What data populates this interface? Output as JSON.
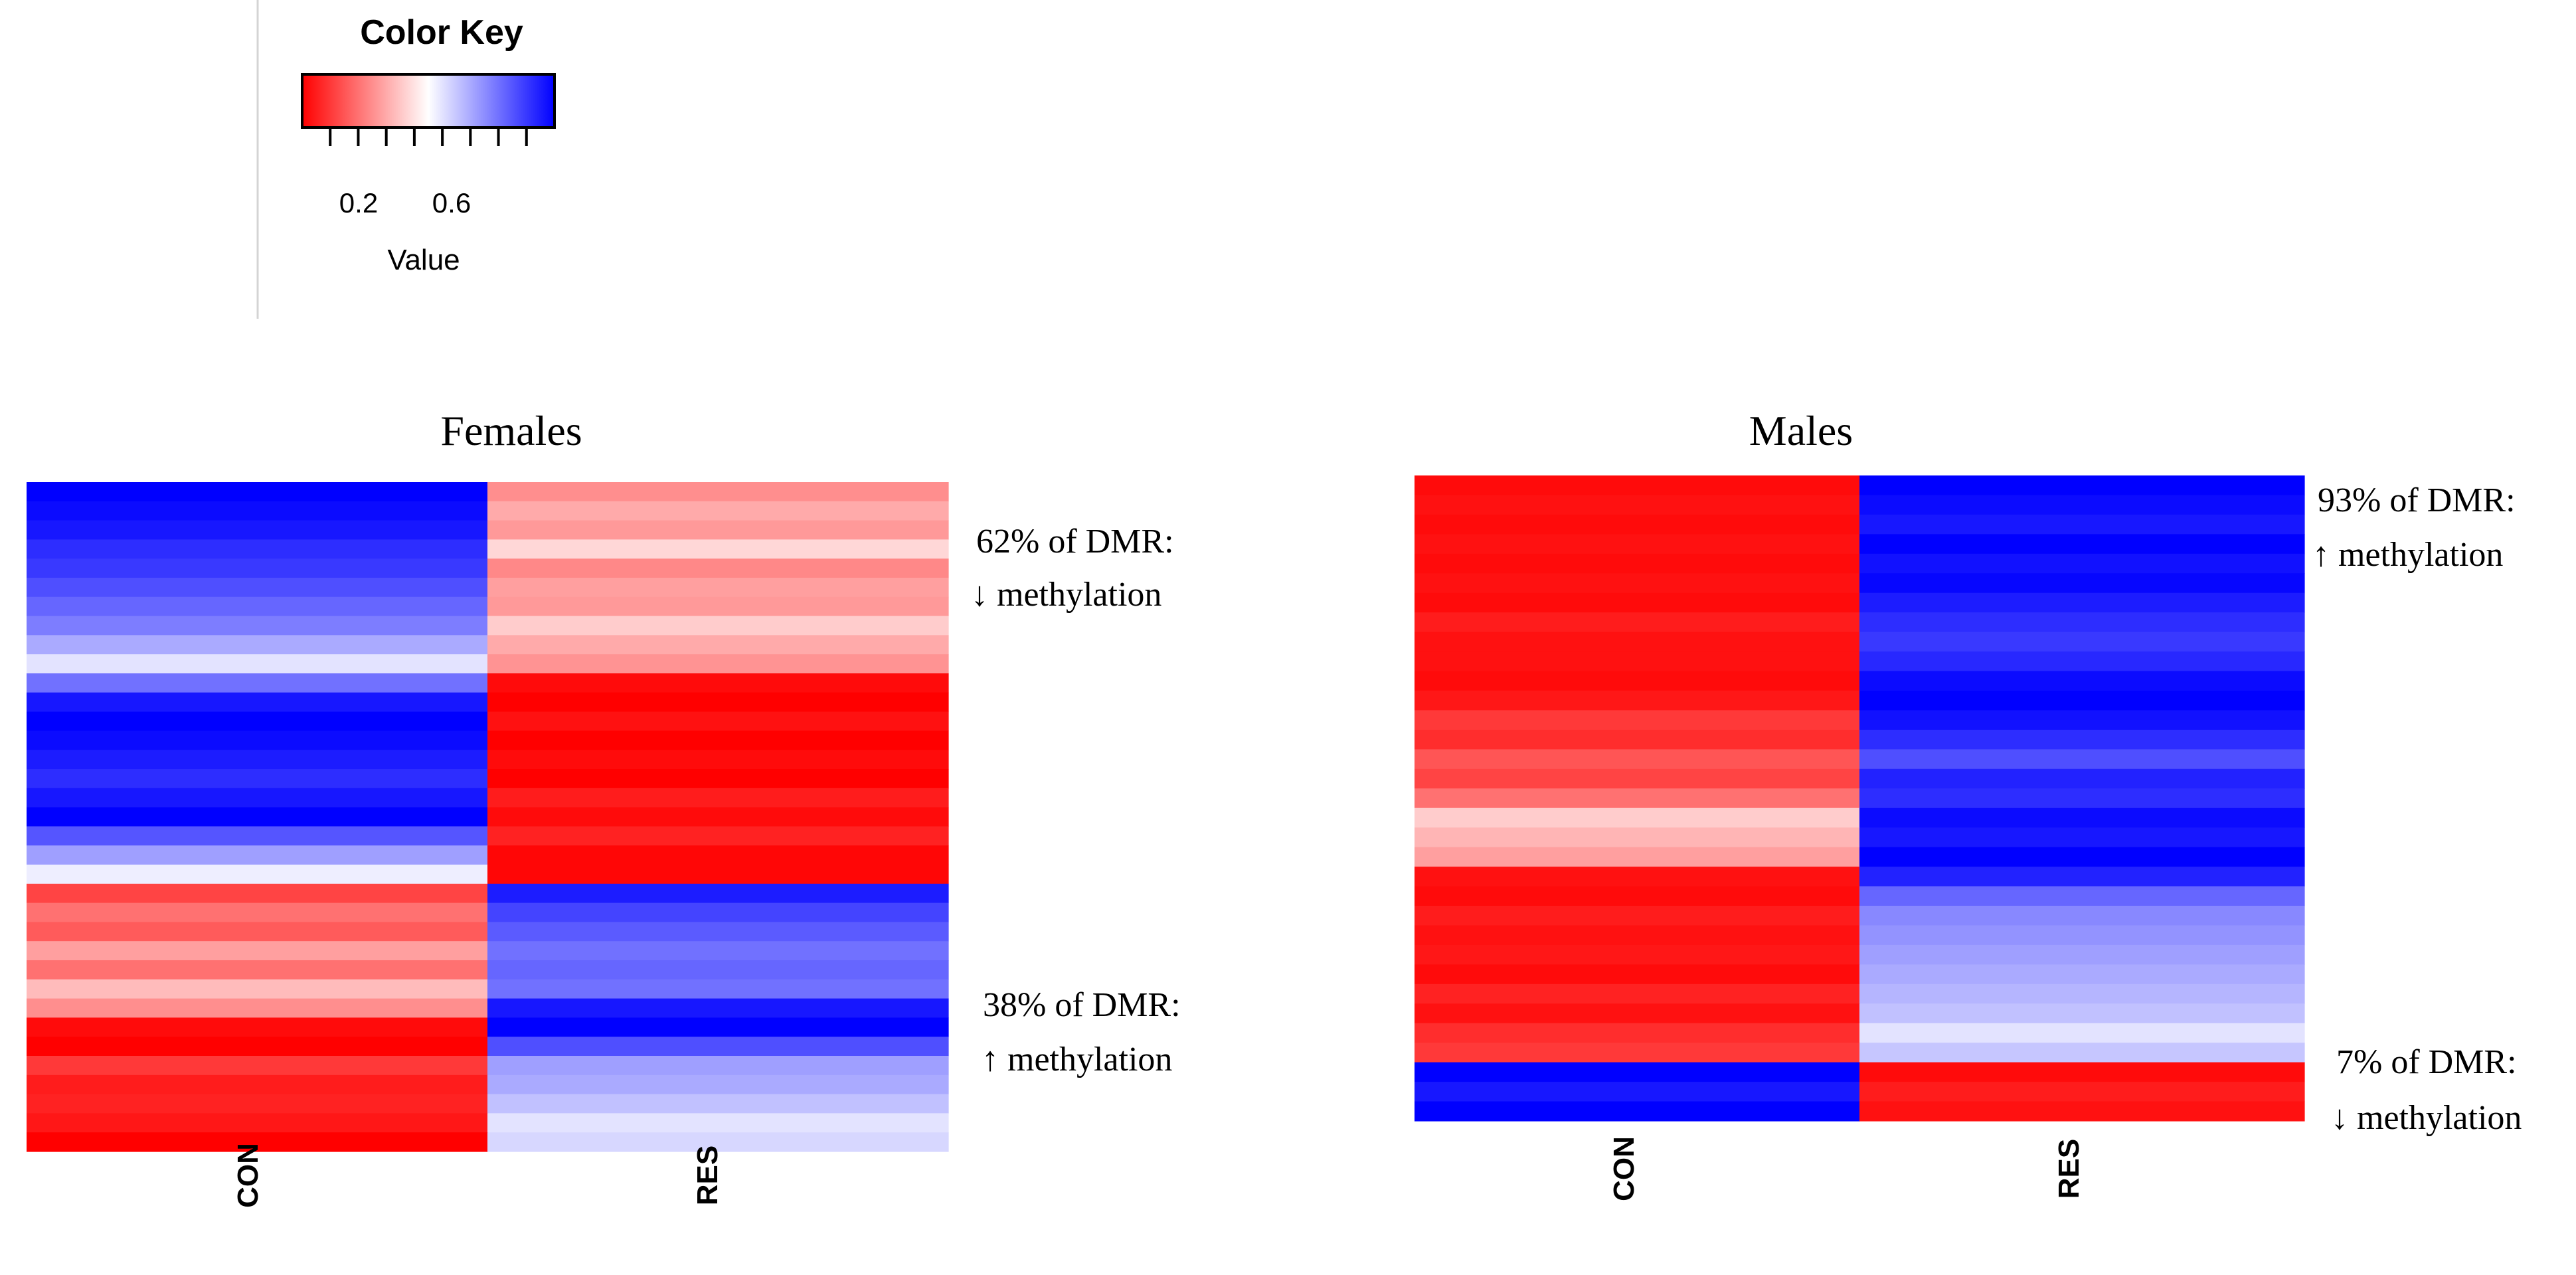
{
  "color_key": {
    "title": "Color Key",
    "xlabel": "Value",
    "tick_labels": [
      "0.2",
      "0.6"
    ],
    "ticks": [
      0.1,
      0.2,
      0.3,
      0.4,
      0.5,
      0.6,
      0.7,
      0.8
    ],
    "range": [
      0,
      0.9
    ],
    "colors": {
      "low": "#ff0000",
      "mid": "#ffffff",
      "high": "#0000ff"
    }
  },
  "chart_data": [
    {
      "type": "heatmap",
      "title": "Females",
      "columns": [
        "CON",
        "RES"
      ],
      "value_range": [
        0,
        0.9
      ],
      "rows": [
        [
          0.9,
          0.25
        ],
        [
          0.88,
          0.3
        ],
        [
          0.86,
          0.27
        ],
        [
          0.82,
          0.38
        ],
        [
          0.8,
          0.24
        ],
        [
          0.76,
          0.28
        ],
        [
          0.72,
          0.27
        ],
        [
          0.68,
          0.36
        ],
        [
          0.6,
          0.3
        ],
        [
          0.5,
          0.26
        ],
        [
          0.7,
          0.02
        ],
        [
          0.86,
          0.0
        ],
        [
          0.9,
          0.03
        ],
        [
          0.88,
          0.0
        ],
        [
          0.85,
          0.02
        ],
        [
          0.82,
          0.0
        ],
        [
          0.86,
          0.05
        ],
        [
          0.9,
          0.02
        ],
        [
          0.75,
          0.06
        ],
        [
          0.62,
          0.01
        ],
        [
          0.48,
          0.01
        ],
        [
          0.12,
          0.85
        ],
        [
          0.2,
          0.78
        ],
        [
          0.16,
          0.74
        ],
        [
          0.28,
          0.7
        ],
        [
          0.2,
          0.72
        ],
        [
          0.33,
          0.7
        ],
        [
          0.25,
          0.86
        ],
        [
          0.02,
          0.9
        ],
        [
          0.0,
          0.76
        ],
        [
          0.1,
          0.62
        ],
        [
          0.05,
          0.6
        ],
        [
          0.06,
          0.56
        ],
        [
          0.04,
          0.5
        ],
        [
          0.0,
          0.52
        ]
      ],
      "annotations": [
        {
          "lines": [
            "62% of DMR:",
            "↓ methylation"
          ]
        },
        {
          "lines": [
            "38% of DMR:",
            "↑ methylation"
          ]
        }
      ]
    },
    {
      "type": "heatmap",
      "title": "Males",
      "columns": [
        "CON",
        "RES"
      ],
      "value_range": [
        0,
        0.9
      ],
      "rows": [
        [
          0.02,
          0.9
        ],
        [
          0.03,
          0.88
        ],
        [
          0.02,
          0.86
        ],
        [
          0.03,
          0.9
        ],
        [
          0.02,
          0.87
        ],
        [
          0.03,
          0.89
        ],
        [
          0.02,
          0.85
        ],
        [
          0.05,
          0.82
        ],
        [
          0.03,
          0.8
        ],
        [
          0.03,
          0.83
        ],
        [
          0.02,
          0.88
        ],
        [
          0.04,
          0.9
        ],
        [
          0.1,
          0.87
        ],
        [
          0.08,
          0.82
        ],
        [
          0.15,
          0.76
        ],
        [
          0.12,
          0.84
        ],
        [
          0.2,
          0.82
        ],
        [
          0.36,
          0.88
        ],
        [
          0.32,
          0.86
        ],
        [
          0.28,
          0.9
        ],
        [
          0.03,
          0.84
        ],
        [
          0.02,
          0.72
        ],
        [
          0.05,
          0.66
        ],
        [
          0.03,
          0.64
        ],
        [
          0.04,
          0.62
        ],
        [
          0.02,
          0.6
        ],
        [
          0.06,
          0.58
        ],
        [
          0.03,
          0.56
        ],
        [
          0.08,
          0.5
        ],
        [
          0.1,
          0.55
        ],
        [
          0.92,
          0.02
        ],
        [
          0.86,
          0.05
        ],
        [
          0.9,
          0.03
        ]
      ],
      "annotations": [
        {
          "lines": [
            "93% of DMR:",
            "↑ methylation"
          ]
        },
        {
          "lines": [
            "7% of DMR:",
            "↓ methylation"
          ]
        }
      ]
    }
  ]
}
